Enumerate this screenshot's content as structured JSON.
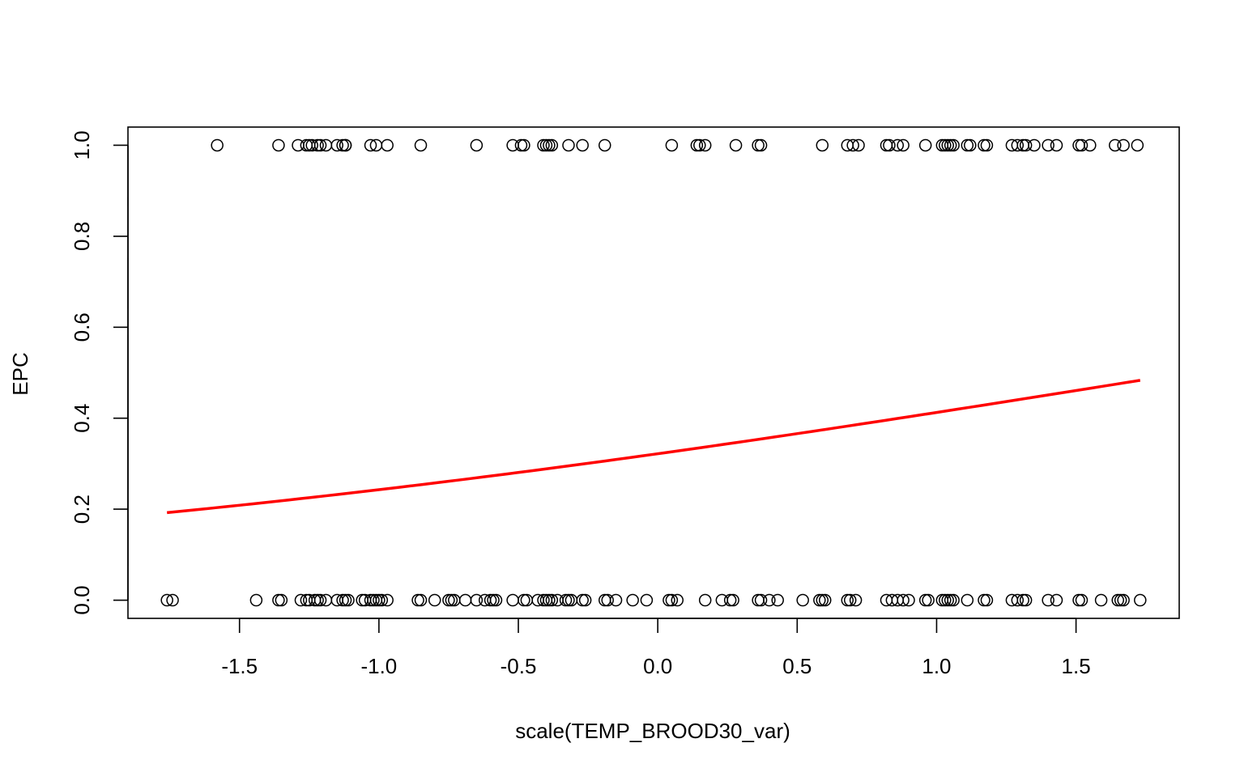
{
  "chart_data": {
    "type": "scatter",
    "title": "",
    "xlabel": "scale(TEMP_BROOD30_var)",
    "ylabel": "EPC",
    "xlim": [
      -1.9,
      1.87
    ],
    "ylim": [
      -0.04,
      1.04
    ],
    "x_ticks": [
      -1.5,
      -1.0,
      -0.5,
      0.0,
      0.5,
      1.0,
      1.5
    ],
    "x_tick_labels": [
      "-1.5",
      "-1.0",
      "-0.5",
      "0.0",
      "0.5",
      "1.0",
      "1.5"
    ],
    "y_ticks": [
      0.0,
      0.2,
      0.4,
      0.6,
      0.8,
      1.0
    ],
    "y_tick_labels": [
      "0.0",
      "0.2",
      "0.4",
      "0.6",
      "0.8",
      "1.0"
    ],
    "grid": false,
    "legend": "none",
    "series": [
      {
        "type": "scatter",
        "marker": "open-circle",
        "color": "#000000",
        "points_y1_x": [
          -1.58,
          -1.36,
          -1.29,
          -1.26,
          -1.25,
          -1.24,
          -1.22,
          -1.21,
          -1.19,
          -1.15,
          -1.13,
          -1.12,
          -1.12,
          -1.03,
          -1.01,
          -0.97,
          -0.85,
          -0.65,
          -0.52,
          -0.49,
          -0.48,
          -0.41,
          -0.4,
          -0.39,
          -0.38,
          -0.32,
          -0.27,
          -0.19,
          0.05,
          0.14,
          0.15,
          0.17,
          0.28,
          0.36,
          0.37,
          0.59,
          0.68,
          0.7,
          0.72,
          0.82,
          0.83,
          0.86,
          0.88,
          0.96,
          1.02,
          1.03,
          1.04,
          1.05,
          1.06,
          1.11,
          1.12,
          1.17,
          1.18,
          1.27,
          1.29,
          1.31,
          1.32,
          1.35,
          1.4,
          1.43,
          1.51,
          1.52,
          1.55,
          1.64,
          1.67,
          1.72
        ],
        "points_y0_x": [
          -1.76,
          -1.74,
          -1.44,
          -1.36,
          -1.35,
          -1.28,
          -1.26,
          -1.25,
          -1.23,
          -1.22,
          -1.21,
          -1.19,
          -1.15,
          -1.13,
          -1.12,
          -1.11,
          -1.06,
          -1.05,
          -1.03,
          -1.02,
          -1.01,
          -1.0,
          -0.99,
          -0.97,
          -0.86,
          -0.85,
          -0.8,
          -0.75,
          -0.74,
          -0.73,
          -0.69,
          -0.65,
          -0.62,
          -0.6,
          -0.59,
          -0.58,
          -0.52,
          -0.48,
          -0.47,
          -0.43,
          -0.41,
          -0.4,
          -0.39,
          -0.38,
          -0.36,
          -0.33,
          -0.32,
          -0.31,
          -0.27,
          -0.26,
          -0.19,
          -0.18,
          -0.15,
          -0.09,
          -0.04,
          0.04,
          0.05,
          0.07,
          0.17,
          0.23,
          0.26,
          0.27,
          0.36,
          0.37,
          0.4,
          0.43,
          0.52,
          0.58,
          0.59,
          0.6,
          0.68,
          0.69,
          0.71,
          0.82,
          0.84,
          0.86,
          0.88,
          0.9,
          0.96,
          0.97,
          1.02,
          1.03,
          1.04,
          1.05,
          1.06,
          1.11,
          1.17,
          1.18,
          1.27,
          1.29,
          1.31,
          1.32,
          1.4,
          1.43,
          1.51,
          1.52,
          1.59,
          1.65,
          1.66,
          1.67,
          1.73
        ]
      },
      {
        "type": "line",
        "color": "#ff0000",
        "logistic_fit": {
          "intercept": -0.745,
          "slope": 0.392
        },
        "x_range": [
          -1.76,
          1.73
        ],
        "sample_points": [
          {
            "x": -1.76,
            "y": 0.184
          },
          {
            "x": -1.0,
            "y": 0.236
          },
          {
            "x": 0.0,
            "y": 0.322
          },
          {
            "x": 1.0,
            "y": 0.411
          },
          {
            "x": 1.73,
            "y": 0.484
          }
        ]
      }
    ]
  }
}
